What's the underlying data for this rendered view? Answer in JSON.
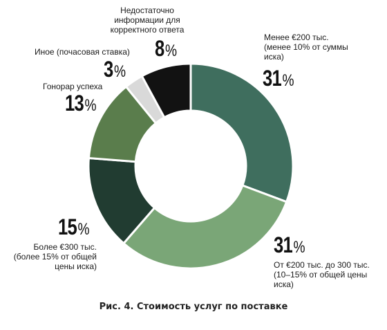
{
  "chart_data": {
    "type": "pie",
    "donut": true,
    "caption": "Рис. 4. Стоимость услуг по поставке",
    "slices": [
      {
        "label": [
          "Менее €200 тыс.",
          "(менее 10% от суммы",
          "иска)"
        ],
        "value": 31,
        "color": "#3f6e5e"
      },
      {
        "label": [
          "От €200 тыс. до 300 тыс.",
          "(10–15% от общей цены",
          "иска)"
        ],
        "value": 31,
        "color": "#7aa677"
      },
      {
        "label": [
          "Более €300 тыс.",
          "(более 15% от общей",
          "цены иска)"
        ],
        "value": 15,
        "color": "#213c31"
      },
      {
        "label": [
          "Гонорар успеха"
        ],
        "value": 13,
        "color": "#5a7d4c"
      },
      {
        "label": [
          "Иное (почасовая ставка)"
        ],
        "value": 3,
        "color": "#d9d9d9"
      },
      {
        "label": [
          "Недостаточно",
          "информации для",
          "корректного ответа"
        ],
        "value": 8,
        "color": "#121212"
      }
    ],
    "percent_sign": "%"
  }
}
